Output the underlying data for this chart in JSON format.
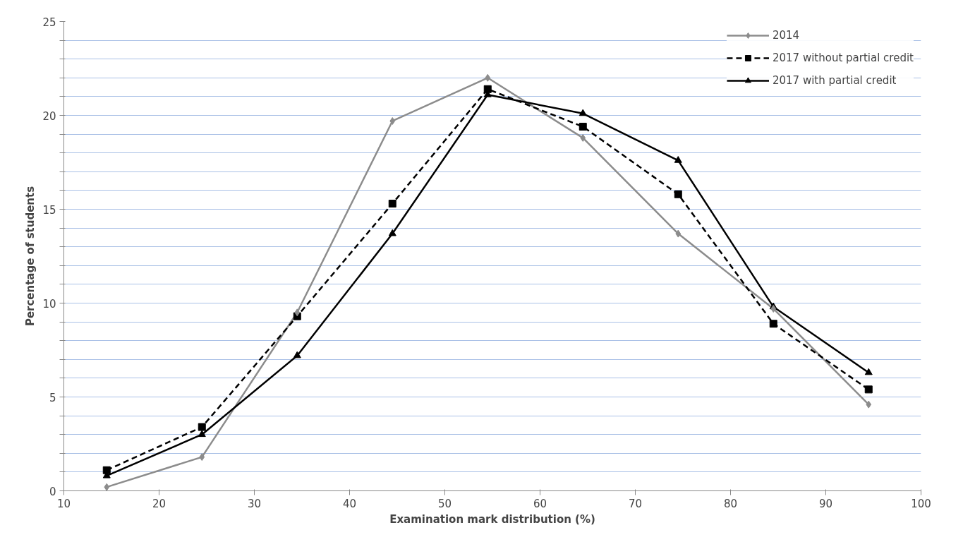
{
  "chart_data": {
    "type": "line",
    "xlabel": "Examination mark distribution (%)",
    "ylabel": "Percentage of students",
    "x": [
      14.5,
      24.5,
      34.5,
      44.5,
      54.5,
      64.5,
      74.5,
      84.5,
      94.5
    ],
    "series": [
      {
        "name": "2014",
        "color": "#8c8c8c",
        "marker": "diamond",
        "line_style": "solid",
        "values": [
          0.2,
          1.8,
          9.5,
          19.7,
          22.0,
          18.8,
          13.7,
          9.7,
          4.6
        ]
      },
      {
        "name": "2017 without partial credit",
        "color": "#000000",
        "marker": "square",
        "line_style": "dashed",
        "values": [
          1.1,
          3.4,
          9.3,
          15.3,
          21.4,
          19.4,
          15.8,
          8.9,
          5.4
        ]
      },
      {
        "name": "2017 with partial credit",
        "color": "#000000",
        "marker": "triangle",
        "line_style": "solid",
        "values": [
          0.8,
          3.0,
          7.2,
          13.7,
          21.1,
          20.1,
          17.6,
          9.8,
          6.3
        ]
      }
    ],
    "xlim": [
      10,
      100
    ],
    "ylim": [
      0,
      25
    ],
    "xticks": [
      10,
      20,
      30,
      40,
      50,
      60,
      70,
      80,
      90,
      100
    ],
    "yticks": [
      0,
      {
        "value": 1,
        "label": null
      },
      {
        "value": 2,
        "label": null
      },
      {
        "value": 3,
        "label": null
      },
      {
        "value": 4,
        "label": null
      },
      5,
      {
        "value": 6,
        "label": null
      },
      {
        "value": 7,
        "label": null
      },
      {
        "value": 8,
        "label": null
      },
      {
        "value": 9,
        "label": null
      },
      10,
      {
        "value": 11,
        "label": null
      },
      {
        "value": 12,
        "label": null
      },
      {
        "value": 13,
        "label": null
      },
      {
        "value": 14,
        "label": null
      },
      15,
      {
        "value": 16,
        "label": null
      },
      {
        "value": 17,
        "label": null
      },
      {
        "value": 18,
        "label": null
      },
      {
        "value": 19,
        "label": null
      },
      20,
      {
        "value": 21,
        "label": null
      },
      {
        "value": 22,
        "label": null
      },
      {
        "value": 23,
        "label": null
      },
      {
        "value": 24,
        "label": null
      },
      25
    ],
    "grid": "y",
    "legend": "top right"
  }
}
